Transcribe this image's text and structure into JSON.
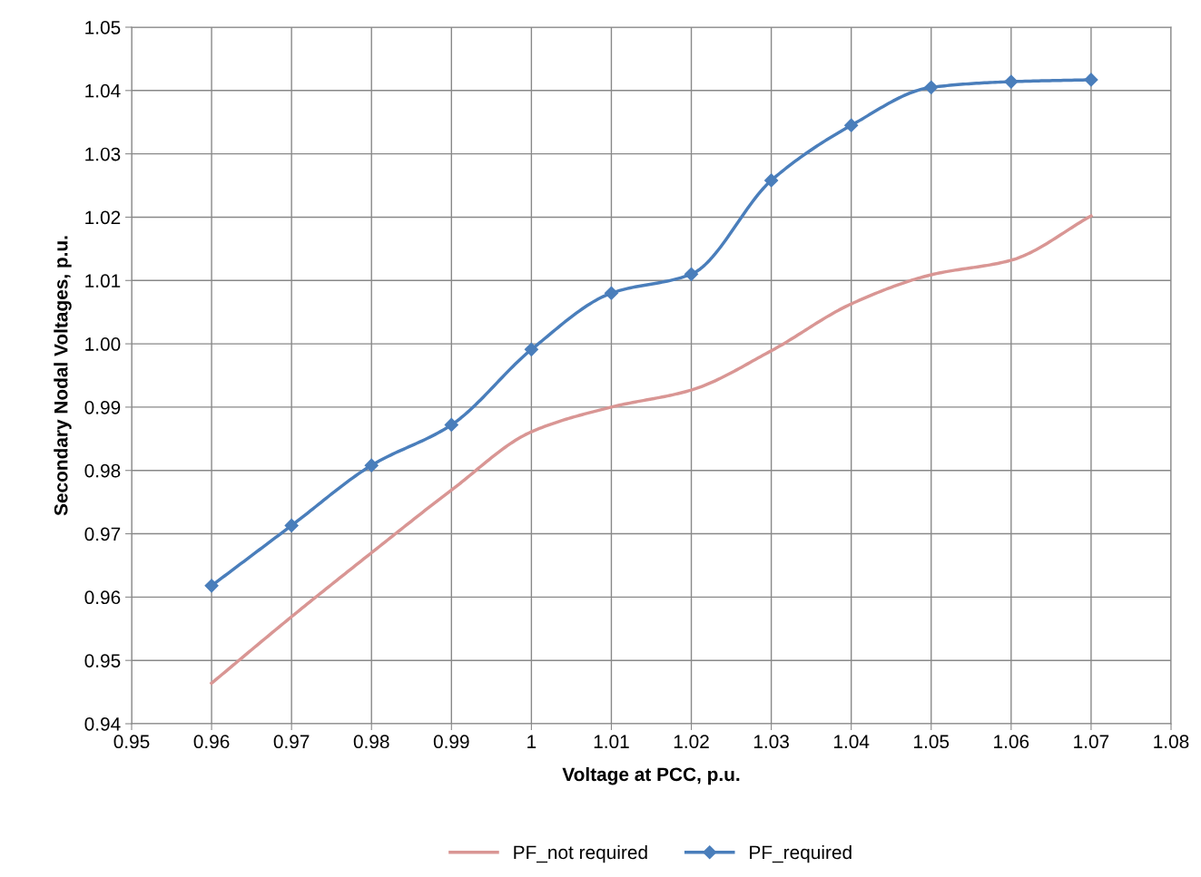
{
  "chart_data": {
    "type": "line",
    "xlabel": "Voltage at PCC, p.u.",
    "ylabel": "Secondary Nodal Voltages, p.u.",
    "x": [
      0.96,
      0.97,
      0.98,
      0.99,
      1.0,
      1.01,
      1.02,
      1.03,
      1.04,
      1.05,
      1.06,
      1.07
    ],
    "series": [
      {
        "name": "PF_not required",
        "color": "#d99694",
        "marker": "none",
        "values": [
          0.9464,
          0.9569,
          0.967,
          0.9769,
          0.9861,
          0.99,
          0.9927,
          0.9989,
          1.0063,
          1.0109,
          1.0132,
          1.0202
        ]
      },
      {
        "name": "PF_required",
        "color": "#4a7ebb",
        "marker": "diamond",
        "values": [
          0.9618,
          0.9713,
          0.9808,
          0.9872,
          0.9991,
          1.008,
          1.011,
          1.0258,
          1.0345,
          1.0405,
          1.0414,
          1.0417
        ]
      }
    ],
    "xlim": [
      0.95,
      1.08
    ],
    "xticks": [
      0.95,
      0.96,
      0.97,
      0.98,
      0.99,
      1,
      1.01,
      1.02,
      1.03,
      1.04,
      1.05,
      1.06,
      1.07,
      1.08
    ],
    "ylim": [
      0.94,
      1.05
    ],
    "yticks": [
      0.94,
      0.95,
      0.96,
      0.97,
      0.98,
      0.99,
      {
        "value": 1.0,
        "label": "1.00"
      },
      1.01,
      1.02,
      1.03,
      1.04,
      1.05
    ],
    "grid": true,
    "legend": "bottom",
    "line_style": "solid"
  }
}
